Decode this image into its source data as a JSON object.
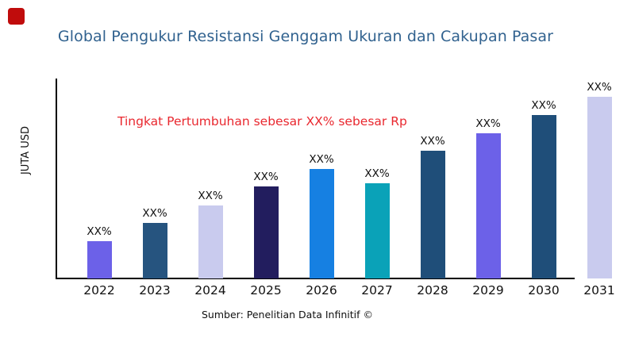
{
  "brand": {
    "logo_color": "#c00c0c"
  },
  "header": {
    "title_color": "#31628f"
  },
  "annotation": {
    "text": "Tingkat Pertumbuhan sebesar XX% sebesar Rp",
    "color": "#e9282f"
  },
  "footer": {
    "source": "Sumber: Penelitian Data Infinitif ©"
  },
  "chart_data": {
    "type": "bar",
    "title": "Global Pengukur Resistansi Genggam Ukuran dan Cakupan Pasar",
    "ylabel": "JUTA USD",
    "xlabel": "",
    "categories": [
      "2022",
      "2023",
      "2024",
      "2025",
      "2026",
      "2027",
      "2028",
      "2029",
      "2030",
      "2031"
    ],
    "values": [
      47,
      70,
      92,
      116,
      138,
      120,
      161,
      183,
      206,
      229
    ],
    "values_note": "relative bar heights in px; actual figures masked as XX% in source image",
    "bar_value_labels": [
      "XX%",
      "XX%",
      "XX%",
      "XX%",
      "XX%",
      "XX%",
      "XX%",
      "XX%",
      "XX%",
      "XX%"
    ],
    "bar_colors": [
      "#6c61e8",
      "#26547f",
      "#c9cbee",
      "#221d5e",
      "#1680e2",
      "#0aa2b8",
      "#1f4e79",
      "#6c61e8",
      "#1f4e79",
      "#c9cbee"
    ],
    "axis_color": "#000000",
    "grid": false,
    "legend": false,
    "annotation": "Tingkat Pertumbuhan sebesar XX% sebesar Rp"
  }
}
